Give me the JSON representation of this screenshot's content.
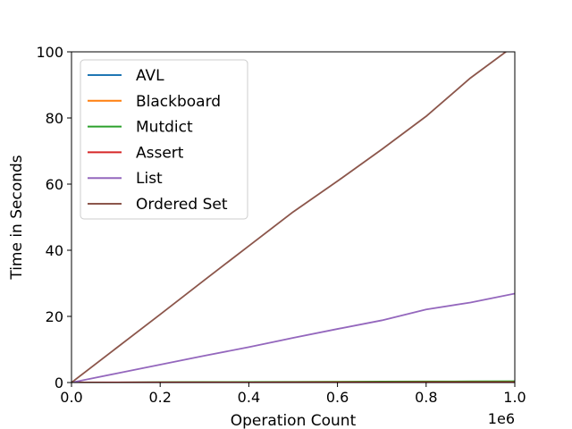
{
  "chart_data": {
    "type": "line",
    "title": "",
    "xlabel": "Operation Count",
    "ylabel": "Time in Seconds",
    "x_offset_text": "1e6",
    "xlim": [
      0.0,
      1.0
    ],
    "ylim": [
      0,
      100
    ],
    "x_ticks": [
      "0.0",
      "0.2",
      "0.4",
      "0.6",
      "0.8",
      "1.0"
    ],
    "y_ticks": [
      "0",
      "20",
      "40",
      "60",
      "80",
      "100"
    ],
    "grid": false,
    "legend_position": "upper-left",
    "x": [
      0.0,
      0.1,
      0.2,
      0.3,
      0.4,
      0.5,
      0.6,
      0.7,
      0.8,
      0.9,
      1.0
    ],
    "series": [
      {
        "name": "AVL",
        "color": "#1f77b4",
        "values": [
          0.0,
          0.03,
          0.05,
          0.08,
          0.1,
          0.12,
          0.15,
          0.17,
          0.2,
          0.22,
          0.25
        ]
      },
      {
        "name": "Blackboard",
        "color": "#ff7f0e",
        "values": [
          0.0,
          0.03,
          0.06,
          0.09,
          0.12,
          0.15,
          0.18,
          0.21,
          0.24,
          0.27,
          0.3
        ]
      },
      {
        "name": "Mutdict",
        "color": "#2ca02c",
        "values": [
          0.0,
          0.04,
          0.08,
          0.12,
          0.16,
          0.2,
          0.24,
          0.28,
          0.32,
          0.36,
          0.4
        ]
      },
      {
        "name": "Assert",
        "color": "#d62728",
        "values": [
          0.0,
          0.01,
          0.02,
          0.03,
          0.04,
          0.05,
          0.06,
          0.07,
          0.08,
          0.09,
          0.1
        ]
      },
      {
        "name": "List",
        "color": "#9467bd",
        "values": [
          0.0,
          2.7,
          5.4,
          8.1,
          10.7,
          13.5,
          16.2,
          18.8,
          22.1,
          24.2,
          26.9
        ]
      },
      {
        "name": "Ordered Set",
        "color": "#8c564b",
        "values": [
          0.0,
          10.3,
          20.6,
          31.0,
          41.3,
          51.6,
          60.9,
          70.5,
          80.5,
          92.1,
          102.0
        ]
      }
    ]
  }
}
